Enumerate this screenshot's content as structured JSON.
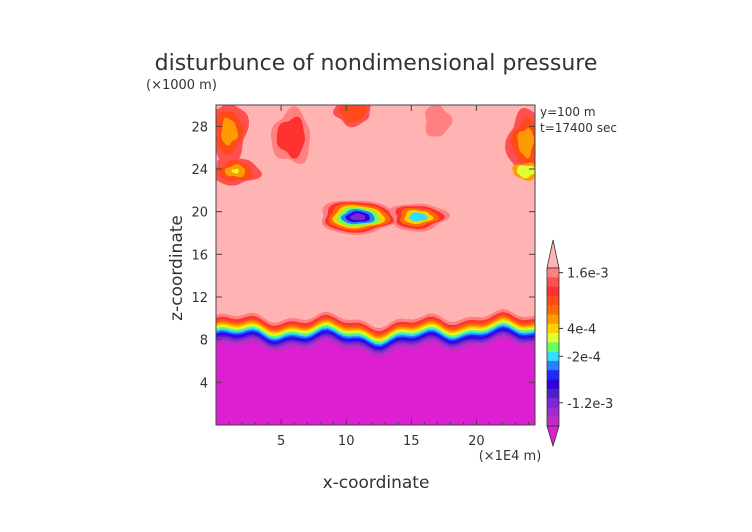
{
  "chart_data": {
    "type": "heatmap",
    "title": "disturbunce of nondimensional pressure",
    "xlabel": "x-coordinate",
    "ylabel": "z-coordinate",
    "x_unit": "(×1E4 m)",
    "y_unit": "(×1000 m)",
    "annotations": [
      "y=100 m",
      "t=17400 sec"
    ],
    "xlim": [
      0,
      24.5
    ],
    "ylim": [
      0,
      30
    ],
    "x_ticks": [
      5,
      10,
      15,
      20
    ],
    "y_ticks": [
      4,
      8,
      12,
      16,
      20,
      24,
      28
    ],
    "colorbar": {
      "labels": [
        "1.6e-3",
        "4e-4",
        "-2e-4",
        "-1.2e-3"
      ],
      "label_values": [
        0.0016,
        0.0004,
        -0.0002,
        -0.0012
      ],
      "levels": [
        0.0018,
        0.0016,
        0.0014,
        0.0012,
        0.001,
        0.0008,
        0.0006,
        0.0004,
        0.0002,
        0.0,
        -0.0002,
        -0.0004,
        -0.0006,
        -0.0008,
        -0.001,
        -0.0012,
        -0.0014,
        -0.0016,
        -0.0018
      ],
      "colors": [
        "#ffb3b3",
        "#ff8080",
        "#ff5050",
        "#ff3030",
        "#ff4a1a",
        "#ff6a00",
        "#ff9a00",
        "#ffd000",
        "#ddff33",
        "#66ff66",
        "#33ddff",
        "#2a7fff",
        "#1e2bff",
        "#3000e0",
        "#4a22c8",
        "#7a28d4",
        "#a02ccc",
        "#c02cc8",
        "#de1ed2"
      ]
    },
    "background_value_upper": 0.0018,
    "background_value_lower": -0.0018,
    "features": [
      {
        "kind": "interface",
        "z_mean": 9.0,
        "note": "transition from positive (upper) to negative (lower) disturbance"
      },
      {
        "kind": "low_center",
        "x": 11.0,
        "z": 19.5,
        "value": -0.0012
      },
      {
        "kind": "low_center",
        "x": 15.2,
        "z": 19.5,
        "value": -0.0002
      },
      {
        "kind": "upper_patches",
        "z_range": [
          22,
          30
        ]
      }
    ]
  }
}
